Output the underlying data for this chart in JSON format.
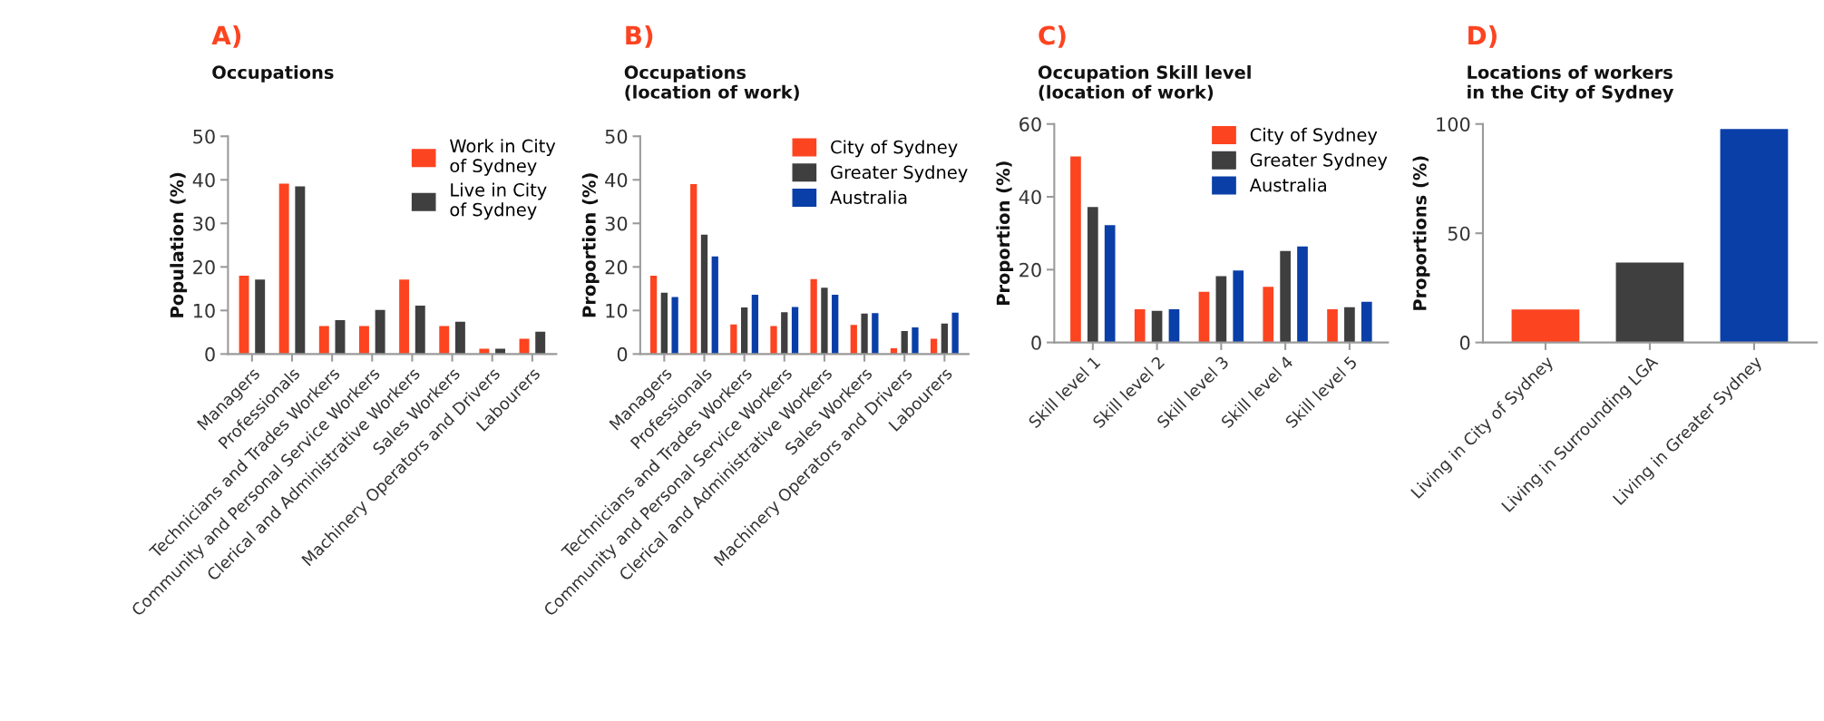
{
  "chart_data": [
    {
      "type": "bar",
      "title": "A)",
      "subtitle": "Occupations",
      "ylabel": "Population (%)",
      "categories": [
        "Managers",
        "Professionals",
        "Technicians and Trades Workers",
        "Community and Personal Service Workers",
        "Clerical and Administrative Workers",
        "Sales Workers",
        "Machinery Operators and Drivers",
        "Labourers"
      ],
      "ylim": [
        0,
        50
      ],
      "yticks": [
        0,
        10,
        20,
        30,
        40,
        50
      ],
      "legend": "top right",
      "series": [
        {
          "name": "Work in City\nof Sydney",
          "color": "#fc4420",
          "values": [
            18.0,
            39.1,
            6.4,
            6.4,
            17.1,
            6.4,
            1.2,
            3.5
          ]
        },
        {
          "name": "Live in City\nof Sydney",
          "color": "#3f3f3f",
          "values": [
            17.1,
            38.5,
            7.8,
            10.1,
            11.1,
            7.4,
            1.2,
            5.1
          ]
        }
      ]
    },
    {
      "type": "bar",
      "title": "B)",
      "subtitle": "Occupations\n(location of work)",
      "ylabel": "Proportion (%)",
      "categories": [
        "Managers",
        "Professionals",
        "Technicians and Trades Workers",
        "Community and Personal Service Workers",
        "Clerical and Administrative Workers",
        "Sales Workers",
        "Machinery Operators and Drivers",
        "Labourers"
      ],
      "ylim": [
        0,
        50
      ],
      "yticks": [
        0,
        10,
        20,
        30,
        40,
        50
      ],
      "legend": "top right",
      "series": [
        {
          "name": "City of Sydney",
          "color": "#fc4420",
          "values": [
            18.0,
            39.0,
            6.8,
            6.4,
            17.2,
            6.7,
            1.3,
            3.5
          ]
        },
        {
          "name": "Greater Sydney",
          "color": "#3f3f3f",
          "values": [
            14.1,
            27.4,
            10.7,
            9.6,
            15.2,
            9.3,
            5.3,
            7.0
          ]
        },
        {
          "name": "Australia",
          "color": "#0a3fa8",
          "values": [
            13.1,
            22.4,
            13.6,
            10.8,
            13.6,
            9.4,
            6.1,
            9.5
          ]
        }
      ]
    },
    {
      "type": "bar",
      "title": "C)",
      "subtitle": "Occupation Skill level\n(location of work)",
      "ylabel": "Proportion (%)",
      "categories": [
        "Skill level 1",
        "Skill level 2",
        "Skill level 3",
        "Skill level 4",
        "Skill level 5"
      ],
      "ylim": [
        0,
        60
      ],
      "yticks": [
        0,
        20,
        40,
        60
      ],
      "legend": "top right",
      "series": [
        {
          "name": "City of Sydney",
          "color": "#fc4420",
          "values": [
            51.1,
            9.1,
            13.9,
            15.3,
            9.1
          ]
        },
        {
          "name": "Greater Sydney",
          "color": "#3f3f3f",
          "values": [
            37.2,
            8.7,
            18.2,
            25.1,
            9.7
          ]
        },
        {
          "name": "Australia",
          "color": "#0a3fa8",
          "values": [
            32.2,
            9.1,
            19.8,
            26.4,
            11.2
          ]
        }
      ]
    },
    {
      "type": "bar",
      "title": "D)",
      "subtitle": "Locations of workers\nin the City of Sydney",
      "ylabel": "Proportions (%)",
      "categories": [
        "Living in City of Sydney",
        "Living in Surrounding LGA",
        "Living in Greater Sydney"
      ],
      "ylim": [
        0,
        100
      ],
      "yticks": [
        0,
        50,
        100
      ],
      "values": [
        15.1,
        36.6,
        97.7
      ],
      "colors": [
        "#fc4420",
        "#3f3f3f",
        "#0a3fa8"
      ]
    }
  ]
}
